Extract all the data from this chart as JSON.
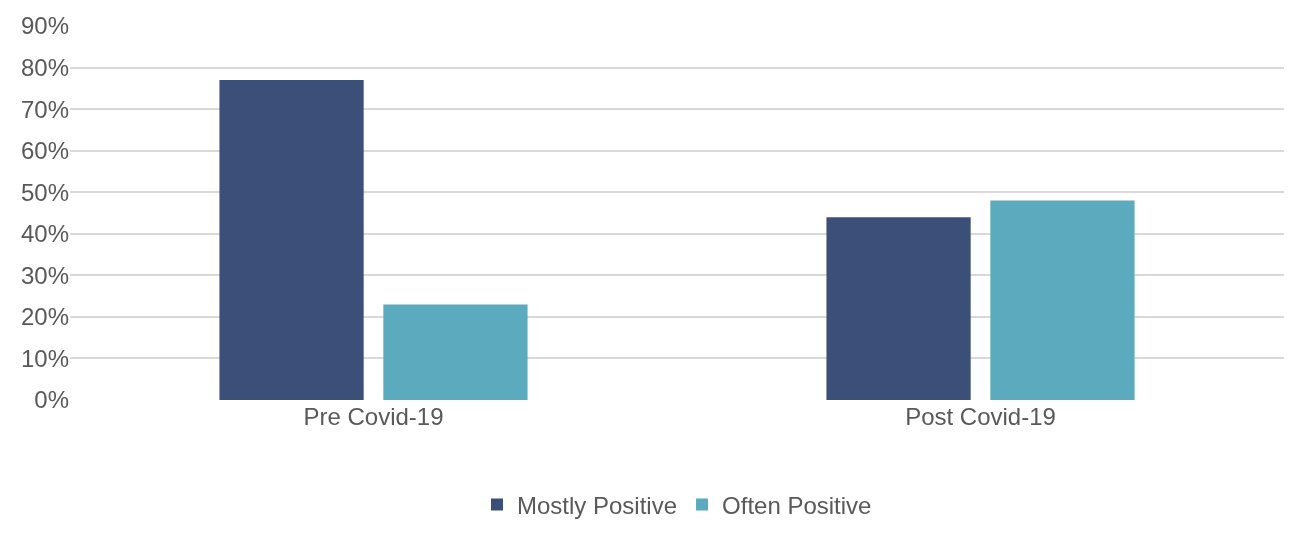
{
  "chart_data": {
    "type": "bar",
    "categories": [
      "Pre Covid-19",
      "Post Covid-19"
    ],
    "series": [
      {
        "name": "Mostly Positive",
        "color": "#3b4f78",
        "values": [
          77,
          44
        ]
      },
      {
        "name": "Often Positive",
        "color": "#5baabe",
        "values": [
          23,
          48
        ]
      }
    ],
    "ylim": [
      0,
      90
    ],
    "yticks": [
      {
        "value": 0,
        "label": "0%"
      },
      {
        "value": 10,
        "label": "10%"
      },
      {
        "value": 20,
        "label": "20%"
      },
      {
        "value": 30,
        "label": "30%"
      },
      {
        "value": 40,
        "label": "40%"
      },
      {
        "value": 50,
        "label": "50%"
      },
      {
        "value": 60,
        "label": "60%"
      },
      {
        "value": 70,
        "label": "70%"
      },
      {
        "value": 80,
        "label": "80%"
      },
      {
        "value": 90,
        "label": "90%"
      }
    ],
    "grid": "y",
    "legend": "bottom"
  }
}
